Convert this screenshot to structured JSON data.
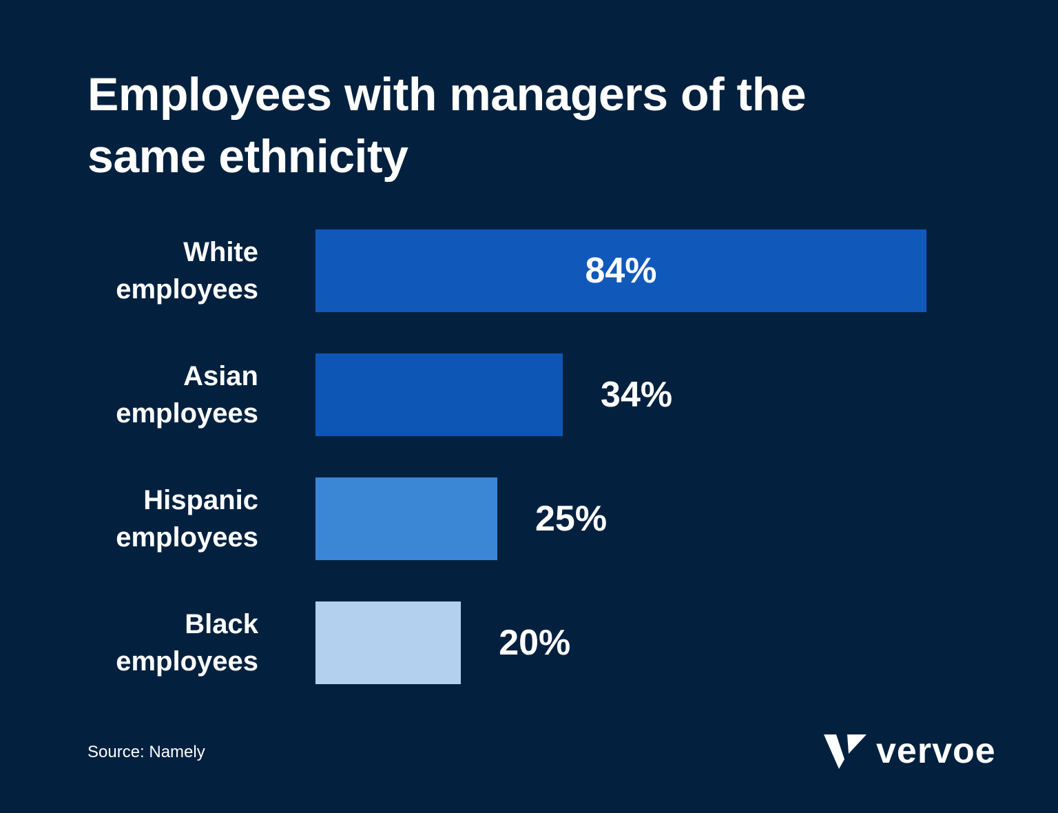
{
  "chart_data": {
    "type": "bar",
    "orientation": "horizontal",
    "title": "Employees with managers of the same ethnicity",
    "categories": [
      "White employees",
      "Asian employees",
      "Hispanic employees",
      "Black employees"
    ],
    "values": [
      84,
      34,
      25,
      20
    ],
    "value_labels": [
      "84%",
      "34%",
      "25%",
      "20%"
    ],
    "colors": [
      "#1059bb",
      "#0e56b6",
      "#3b87d6",
      "#b3d0ee"
    ],
    "source": "Source: Namely",
    "logo": "vervoe"
  }
}
